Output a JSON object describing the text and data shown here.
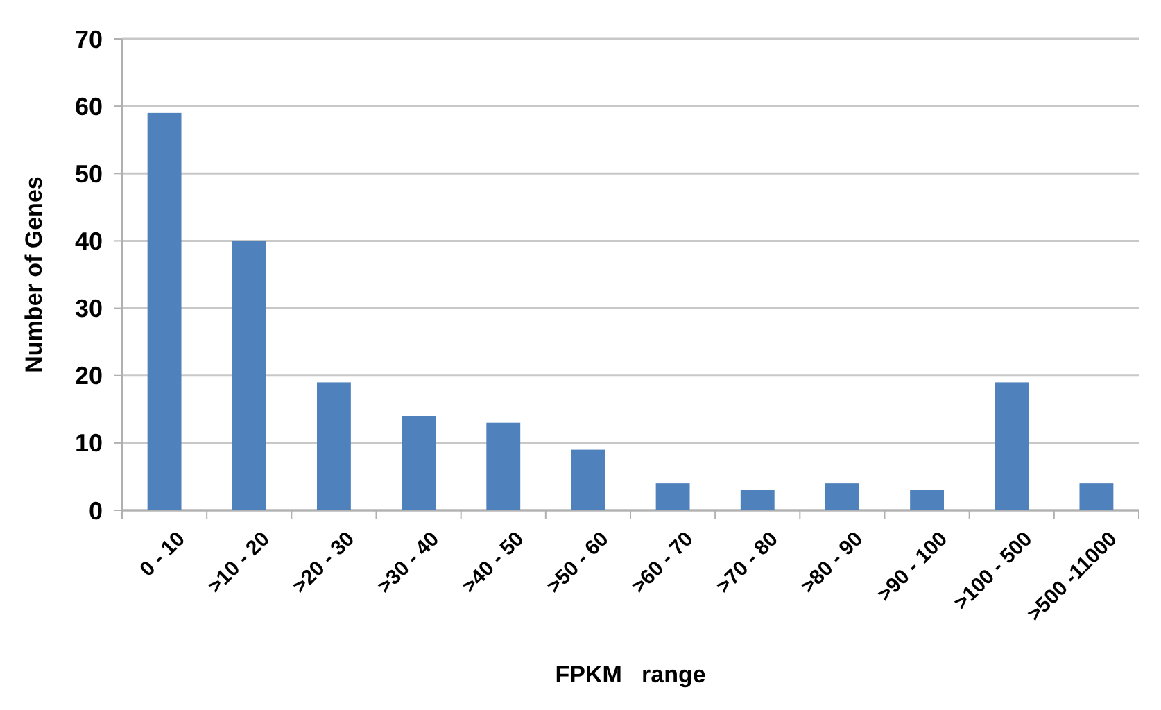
{
  "chart_data": {
    "type": "bar",
    "xlabel": "FPKM   range",
    "ylabel": "Number of Genes",
    "categories": [
      "0 - 10",
      ">10 - 20",
      ">20 - 30",
      ">30 - 40",
      ">40 - 50",
      ">50 - 60",
      ">60 - 70",
      ">70 - 80",
      ">80 - 90",
      ">90 - 100",
      ">100 - 500",
      ">500 -11000"
    ],
    "values": [
      59,
      40,
      19,
      14,
      13,
      9,
      4,
      3,
      4,
      3,
      19,
      4
    ],
    "color": "#4f81bd",
    "ylim": [
      0,
      70
    ],
    "yticks": [
      0,
      10,
      20,
      30,
      40,
      50,
      60,
      70
    ],
    "grid": "y"
  }
}
